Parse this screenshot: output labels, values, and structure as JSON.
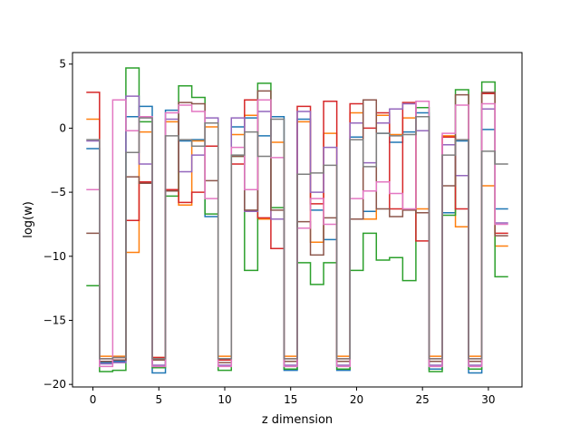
{
  "chart_data": {
    "type": "line",
    "drawstyle": "steps-mid",
    "title": "",
    "xlabel": "z dimension",
    "ylabel": "log(w)",
    "xlim": [
      -1.55,
      32.55
    ],
    "ylim": [
      -20.2,
      5.9
    ],
    "xticks": [
      0,
      5,
      10,
      15,
      20,
      25,
      30
    ],
    "xtick_labels": [
      "0",
      "5",
      "10",
      "15",
      "20",
      "25",
      "30"
    ],
    "yticks": [
      5,
      0,
      -5,
      -10,
      -15,
      -20
    ],
    "ytick_labels": [
      "5",
      "0",
      "−5",
      "−10",
      "−15",
      "−20"
    ],
    "grid": false,
    "legend": "none",
    "x": [
      0,
      1,
      2,
      3,
      4,
      5,
      6,
      7,
      8,
      9,
      10,
      11,
      12,
      13,
      14,
      15,
      16,
      17,
      18,
      19,
      20,
      21,
      22,
      23,
      24,
      25,
      26,
      27,
      28,
      29,
      30,
      31
    ],
    "series": [
      {
        "color": "#1f77b4",
        "values": [
          -1.6,
          -18.3,
          -18.2,
          0.9,
          1.7,
          -19.1,
          1.4,
          -1.0,
          -0.9,
          -6.9,
          -18.0,
          0.1,
          0.8,
          -0.6,
          0.9,
          -18.9,
          0.7,
          -6.4,
          -8.7,
          -18.9,
          -0.7,
          -6.5,
          -0.4,
          -1.1,
          -0.3,
          1.2,
          -18.8,
          -6.6,
          -1.0,
          -19.1,
          -0.1,
          -6.3
        ]
      },
      {
        "color": "#ff7f0e",
        "values": [
          0.7,
          -17.8,
          -17.8,
          -9.7,
          -0.3,
          -17.9,
          0.5,
          -6.0,
          -1.0,
          0.1,
          -17.8,
          -0.5,
          1.0,
          -7.1,
          -1.1,
          -17.8,
          0.5,
          -8.9,
          -0.4,
          -17.8,
          1.2,
          -7.1,
          1.0,
          -0.5,
          0.8,
          -6.3,
          -17.8,
          -0.6,
          -7.7,
          -17.8,
          -4.5,
          -9.2
        ]
      },
      {
        "color": "#2ca02c",
        "values": [
          -12.3,
          -19.0,
          -18.9,
          4.7,
          0.5,
          -18.7,
          -5.3,
          3.3,
          2.4,
          -6.7,
          -18.9,
          -2.2,
          -11.1,
          3.5,
          -6.2,
          -18.8,
          -10.5,
          -12.2,
          -10.5,
          -18.8,
          -11.1,
          -8.2,
          -10.3,
          -10.1,
          -11.9,
          1.6,
          -19.0,
          -6.8,
          3.0,
          -18.8,
          3.6,
          -11.6
        ]
      },
      {
        "color": "#d62728",
        "values": [
          2.8,
          -18.0,
          -17.9,
          -7.2,
          -4.2,
          -17.9,
          -4.8,
          -5.8,
          -5.0,
          -1.4,
          -18.1,
          -2.8,
          2.2,
          -7.0,
          -9.4,
          -18.0,
          1.7,
          -5.9,
          2.1,
          -18.0,
          1.9,
          0.0,
          1.2,
          -6.3,
          2.0,
          -8.8,
          -18.0,
          -0.7,
          -6.3,
          -18.0,
          2.7,
          -8.2
        ]
      },
      {
        "color": "#9467bd",
        "values": [
          -1.0,
          -18.4,
          -18.3,
          2.5,
          -2.8,
          -18.5,
          0.7,
          -3.4,
          -2.1,
          0.8,
          -18.5,
          0.8,
          -6.5,
          1.3,
          -7.1,
          -18.5,
          1.3,
          -5.0,
          -1.5,
          -18.5,
          0.4,
          -2.7,
          0.4,
          1.5,
          1.9,
          -0.2,
          -18.5,
          -1.3,
          -3.7,
          -18.5,
          1.5,
          -7.4
        ]
      },
      {
        "color": "#8c564b",
        "values": [
          -8.2,
          -18.2,
          -18.1,
          -3.8,
          -4.3,
          -18.1,
          -4.9,
          2.0,
          1.9,
          -4.1,
          -18.3,
          -2.2,
          -6.4,
          2.9,
          -6.4,
          -18.2,
          -7.3,
          -9.9,
          -7.0,
          -18.2,
          -7.1,
          2.2,
          -6.3,
          -6.9,
          -6.4,
          -6.6,
          -18.2,
          -4.5,
          2.6,
          -18.2,
          2.8,
          -8.4
        ]
      },
      {
        "color": "#e377c2",
        "values": [
          -4.8,
          -18.6,
          2.2,
          -0.2,
          0.9,
          -18.6,
          1.2,
          1.8,
          1.3,
          -5.5,
          -18.6,
          -1.5,
          -4.8,
          2.2,
          -2.3,
          -18.6,
          -7.8,
          -5.5,
          -7.5,
          -18.6,
          -5.5,
          -4.9,
          -4.2,
          -5.1,
          -6.3,
          2.1,
          -18.6,
          -0.4,
          1.8,
          -18.6,
          1.9,
          -7.5
        ]
      },
      {
        "color": "#7f7f7f",
        "values": [
          -0.9,
          -18.0,
          -17.9,
          -1.9,
          0.8,
          -18.0,
          -0.6,
          -0.9,
          -1.4,
          0.4,
          -18.0,
          -2.1,
          -0.3,
          -2.2,
          0.7,
          -18.0,
          -3.6,
          -3.5,
          -2.9,
          -18.0,
          -0.9,
          -3.0,
          -0.4,
          -0.6,
          -0.5,
          0.9,
          -18.0,
          -2.1,
          -0.9,
          -18.0,
          -1.8,
          -2.8
        ]
      }
    ]
  }
}
